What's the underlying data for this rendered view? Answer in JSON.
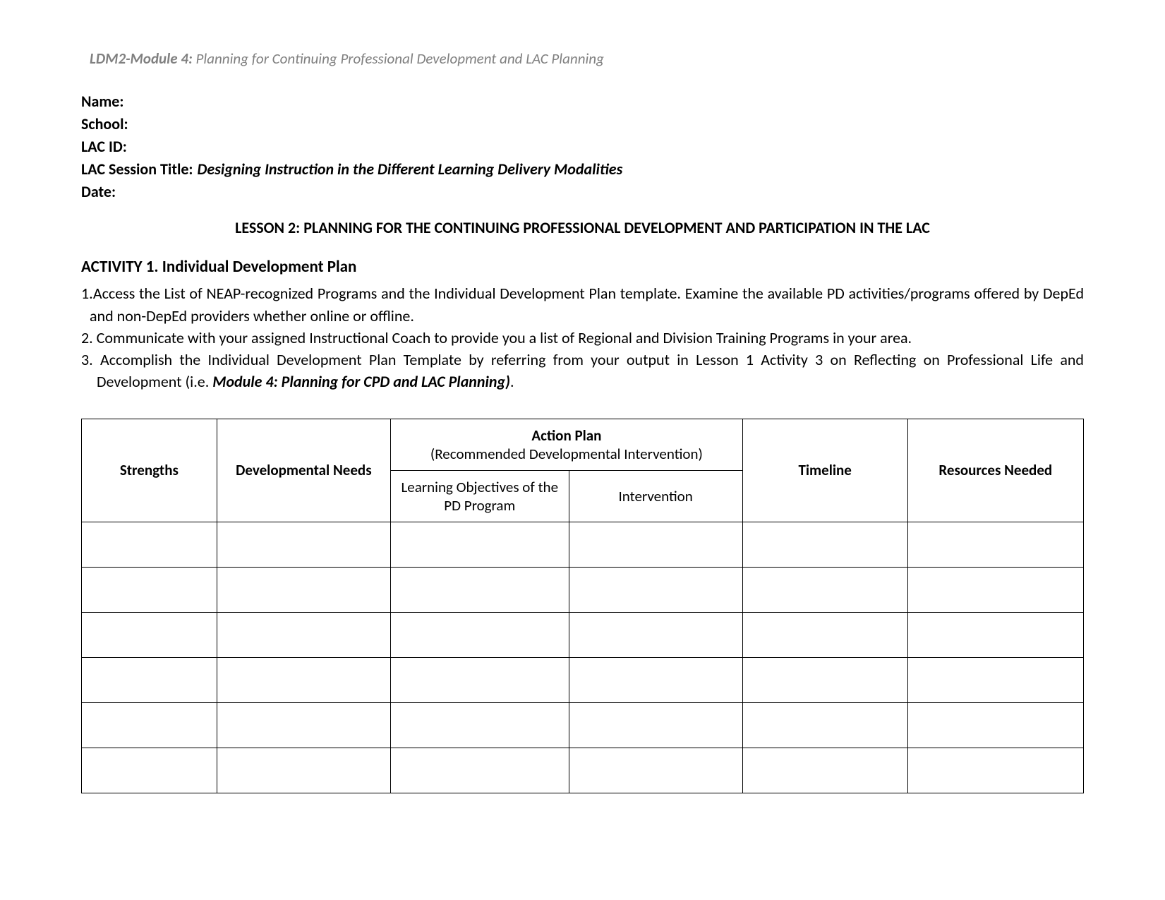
{
  "header": {
    "module_bold": "LDM2-Module 4:",
    "module_rest": " Planning for Continuing Professional Development and LAC Planning"
  },
  "info": {
    "name_label": "Name:",
    "name_value": "",
    "school_label": "School:",
    "school_value": "",
    "lacid_label": "LAC ID:",
    "lacid_value": "",
    "session_label": "LAC Session Title:",
    "session_value": "Designing Instruction in the Different Learning Delivery Modalities",
    "date_label": "Date:",
    "date_value": ""
  },
  "lesson_title": "LESSON 2: PLANNING FOR THE CONTINUING PROFESSIONAL DEVELOPMENT AND PARTICIPATION IN THE LAC",
  "activity_title": "ACTIVITY 1. Individual Development Plan",
  "instructions": {
    "item1": "1.Access the List of NEAP-recognized Programs and the Individual Development Plan template. Examine the available PD activities/programs offered by DepEd and non-DepEd providers whether online or offline.",
    "item2": "2. Communicate with your assigned Instructional Coach to provide you a list of Regional and Division Training Programs in your area.",
    "item3_pre": "3. Accomplish the Individual Development Plan Template by referring from your output in Lesson 1 Activity 3 on Reflecting on Professional Life and Development (i.e. ",
    "item3_bold": "Module 4: Planning for CPD and LAC Planning)",
    "item3_post": "."
  },
  "table": {
    "headers": {
      "strengths": "Strengths",
      "dev_needs": "Developmental Needs",
      "action_plan_top": "Action Plan",
      "action_plan_sub": "(Recommended Developmental Intervention)",
      "learning_obj": "Learning Objectives of the PD Program",
      "intervention": "Intervention",
      "timeline": "Timeline",
      "resources": "Resources Needed"
    },
    "rows": [
      [
        "",
        "",
        "",
        "",
        "",
        ""
      ],
      [
        "",
        "",
        "",
        "",
        "",
        ""
      ],
      [
        "",
        "",
        "",
        "",
        "",
        ""
      ],
      [
        "",
        "",
        "",
        "",
        "",
        ""
      ],
      [
        "",
        "",
        "",
        "",
        "",
        ""
      ],
      [
        "",
        "",
        "",
        "",
        "",
        ""
      ]
    ]
  },
  "colors": {
    "text": "#000000",
    "muted": "#808080",
    "border": "#000000",
    "background": "#ffffff"
  }
}
